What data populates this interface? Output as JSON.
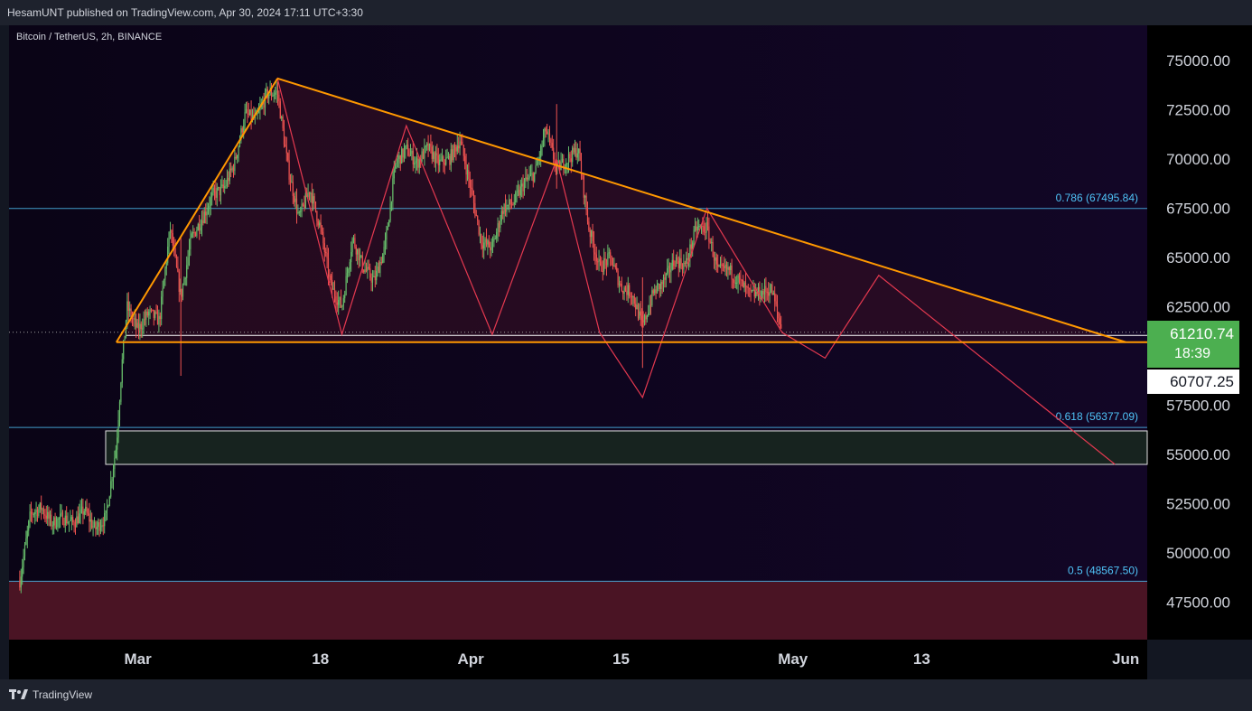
{
  "header": {
    "published_text": "HesamUNT published on TradingView.com, Apr 30, 2024 17:11 UTC+3:30"
  },
  "symbol_title": "Bitcoin / TetherUS, 2h, BINANCE",
  "footer": {
    "brand": "TradingView"
  },
  "last_price": {
    "price": "61210.74",
    "countdown": "18:39",
    "color": "#4caf50"
  },
  "support_price": "60707.25",
  "colors": {
    "background": "#0a0318",
    "triangle": "#ff9800",
    "projection": "#e53950",
    "fib": "#4fc3f7",
    "up": "#66bb6a",
    "down": "#ef5350"
  },
  "chart_data": {
    "type": "candlestick",
    "y_axis": {
      "ticks": [
        "75000.00",
        "72500.00",
        "70000.00",
        "67500.00",
        "65000.00",
        "62500.00",
        "57500.00",
        "55000.00",
        "52500.00",
        "50000.00",
        "47500.00"
      ],
      "range": [
        45600,
        76800
      ]
    },
    "x_axis": {
      "ticks": [
        "Mar",
        "18",
        "Apr",
        "15",
        "May",
        "13",
        "Jun"
      ]
    },
    "fib_levels": [
      {
        "label": "0.786 (67495.84)",
        "value": 67495.84
      },
      {
        "label": "0.618 (56377.09)",
        "value": 56377.09
      },
      {
        "label": "0.5 (48567.50)",
        "value": 48567.5
      }
    ],
    "triangle": {
      "apex_high": {
        "date": "2024-03-14",
        "value": 74100
      },
      "support": 60707.25,
      "left_base_date": "2024-02-28",
      "convergence_date": "2024-06-01"
    },
    "zigzag": [
      {
        "date": "2024-02-28",
        "value": 60700
      },
      {
        "date": "2024-03-14",
        "value": 74100
      },
      {
        "date": "2024-03-20",
        "value": 61100
      },
      {
        "date": "2024-03-26",
        "value": 71700
      },
      {
        "date": "2024-04-03",
        "value": 61100
      },
      {
        "date": "2024-04-09",
        "value": 70000
      },
      {
        "date": "2024-04-13",
        "value": 61200
      },
      {
        "date": "2024-04-17",
        "value": 57900
      },
      {
        "date": "2024-04-23",
        "value": 67500
      },
      {
        "date": "2024-04-30",
        "value": 61200
      },
      {
        "date": "2024-05-04",
        "value": 59900
      },
      {
        "date": "2024-05-09",
        "value": 64100
      },
      {
        "date": "2024-05-31",
        "value": 54500
      }
    ],
    "demand_zone": [
      54500,
      56200
    ],
    "lower_zone": [
      45600,
      48567.5
    ],
    "price_path": [
      [
        "2024-02-19",
        48600
      ],
      [
        "2024-02-20",
        52000
      ],
      [
        "2024-02-21",
        52300
      ],
      [
        "2024-02-22",
        51500
      ],
      [
        "2024-02-23",
        51800
      ],
      [
        "2024-02-24",
        51500
      ],
      [
        "2024-02-25",
        52200
      ],
      [
        "2024-02-26",
        51200
      ],
      [
        "2024-02-27",
        51800
      ],
      [
        "2024-02-28",
        55500
      ],
      [
        "2024-02-28.5",
        59500
      ],
      [
        "2024-02-29",
        62500
      ],
      [
        "2024-03-01",
        61300
      ],
      [
        "2024-03-02",
        62200
      ],
      [
        "2024-03-03",
        61800
      ],
      [
        "2024-03-04",
        66500
      ],
      [
        "2024-03-05",
        63000
      ],
      [
        "2024-03-06",
        66000
      ],
      [
        "2024-03-07",
        67000
      ],
      [
        "2024-03-08",
        68200
      ],
      [
        "2024-03-09",
        68500
      ],
      [
        "2024-03-10",
        69800
      ],
      [
        "2024-03-11",
        72300
      ],
      [
        "2024-03-12",
        72000
      ],
      [
        "2024-03-13",
        73300
      ],
      [
        "2024-03-14",
        73400
      ],
      [
        "2024-03-15",
        69500
      ],
      [
        "2024-03-16",
        67000
      ],
      [
        "2024-03-17",
        68500
      ],
      [
        "2024-03-18",
        66500
      ],
      [
        "2024-03-19",
        63500
      ],
      [
        "2024-03-20",
        62500
      ],
      [
        "2024-03-21",
        66000
      ],
      [
        "2024-03-22",
        64500
      ],
      [
        "2024-03-23",
        63800
      ],
      [
        "2024-03-24",
        65500
      ],
      [
        "2024-03-25",
        69800
      ],
      [
        "2024-03-26",
        70500
      ],
      [
        "2024-03-27",
        69800
      ],
      [
        "2024-03-28",
        70600
      ],
      [
        "2024-03-29",
        69800
      ],
      [
        "2024-03-30",
        70000
      ],
      [
        "2024-03-31",
        71000
      ],
      [
        "2024-04-01",
        68500
      ],
      [
        "2024-04-02",
        65800
      ],
      [
        "2024-04-03",
        65500
      ],
      [
        "2024-04-04",
        67500
      ],
      [
        "2024-04-05",
        67800
      ],
      [
        "2024-04-06",
        68800
      ],
      [
        "2024-04-07",
        69300
      ],
      [
        "2024-04-08",
        71500
      ],
      [
        "2024-04-09",
        69500
      ],
      [
        "2024-04-10",
        70000
      ],
      [
        "2024-04-11",
        70500
      ],
      [
        "2024-04-12",
        66500
      ],
      [
        "2024-04-13",
        64500
      ],
      [
        "2024-04-14",
        65000
      ],
      [
        "2024-04-15",
        63500
      ],
      [
        "2024-04-16",
        63200
      ],
      [
        "2024-04-17",
        61500
      ],
      [
        "2024-04-18",
        63200
      ],
      [
        "2024-04-19",
        63800
      ],
      [
        "2024-04-20",
        64900
      ],
      [
        "2024-04-21",
        64600
      ],
      [
        "2024-04-22",
        66500
      ],
      [
        "2024-04-23",
        66500
      ],
      [
        "2024-04-24",
        64300
      ],
      [
        "2024-04-25",
        64400
      ],
      [
        "2024-04-26",
        63800
      ],
      [
        "2024-04-27",
        63100
      ],
      [
        "2024-04-28",
        63200
      ],
      [
        "2024-04-29",
        63400
      ],
      [
        "2024-04-30",
        61200
      ]
    ]
  }
}
